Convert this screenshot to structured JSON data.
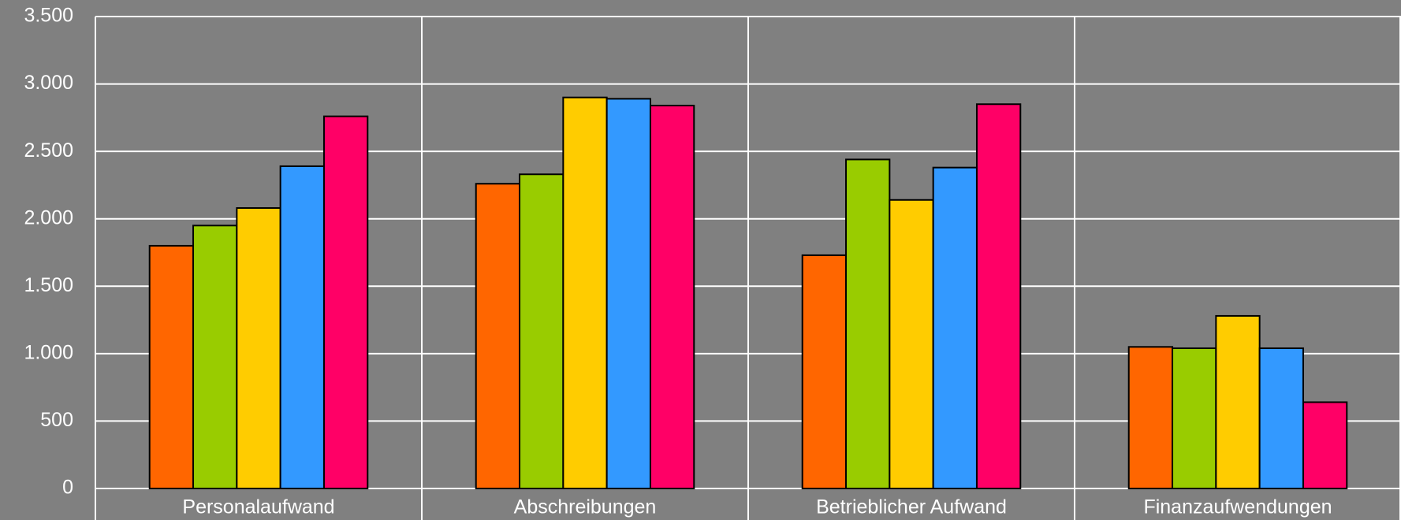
{
  "chart_data": {
    "type": "bar",
    "categories": [
      "Personalaufwand",
      "Abschreibungen",
      "Betrieblicher Aufwand",
      "Finanzaufwendungen"
    ],
    "series": [
      {
        "color": "#ff6600",
        "values": [
          1800,
          2260,
          1730,
          1050
        ]
      },
      {
        "color": "#99cc00",
        "values": [
          1950,
          2330,
          2440,
          1040
        ]
      },
      {
        "color": "#ffcc00",
        "values": [
          2080,
          2900,
          2140,
          1280
        ]
      },
      {
        "color": "#3399ff",
        "values": [
          2390,
          2890,
          2380,
          1040
        ]
      },
      {
        "color": "#ff0066",
        "values": [
          2760,
          2840,
          2850,
          640
        ]
      }
    ],
    "ylim": [
      0,
      3500
    ],
    "yticks": [
      0,
      500,
      {
        "value": 1000,
        "label": "1.000"
      },
      {
        "value": 1500,
        "label": "1.500"
      },
      {
        "value": 2000,
        "label": "2.000"
      },
      {
        "value": 2500,
        "label": "2.500"
      },
      {
        "value": 3000,
        "label": "3.000"
      },
      {
        "value": 3500,
        "label": "3.500"
      }
    ],
    "grid": true
  }
}
